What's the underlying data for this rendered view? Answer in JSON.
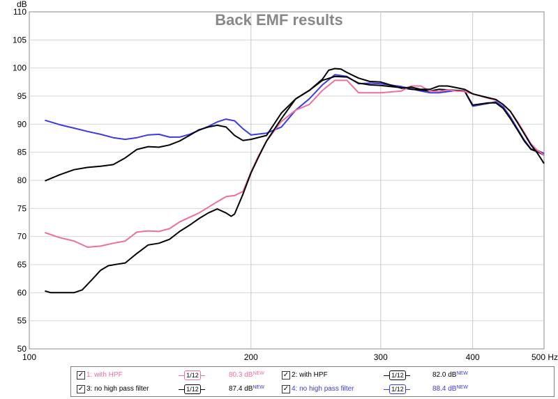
{
  "chart_data": {
    "type": "line",
    "title": "Back EMF results",
    "ylabel": "dB",
    "xscale": "log",
    "xlim": [
      100,
      500
    ],
    "ylim": [
      50,
      110
    ],
    "x_ticks": [
      100,
      200,
      300,
      400,
      500
    ],
    "x_tick_labels": [
      "100",
      "200",
      "300",
      "400",
      "500 Hz"
    ],
    "y_ticks": [
      50,
      55,
      60,
      65,
      70,
      75,
      80,
      85,
      90,
      95,
      100,
      105,
      110
    ],
    "grid": true,
    "series": [
      {
        "name": "1: with HPF",
        "color": "#f06da0",
        "value": "80.3 dB",
        "checked": true,
        "points": [
          [
            105,
            70.7
          ],
          [
            110,
            69.8
          ],
          [
            115,
            69.2
          ],
          [
            120,
            68.1
          ],
          [
            125,
            68.3
          ],
          [
            130,
            68.8
          ],
          [
            135,
            69.2
          ],
          [
            140,
            70.8
          ],
          [
            145,
            71.0
          ],
          [
            150,
            70.9
          ],
          [
            155,
            71.4
          ],
          [
            160,
            72.6
          ],
          [
            170,
            74.2
          ],
          [
            180,
            76.2
          ],
          [
            185,
            77.1
          ],
          [
            190,
            77.3
          ],
          [
            195,
            78.0
          ],
          [
            200,
            81.5
          ],
          [
            205,
            84.5
          ],
          [
            210,
            87.0
          ],
          [
            220,
            90.5
          ],
          [
            230,
            92.5
          ],
          [
            240,
            93.5
          ],
          [
            250,
            96.0
          ],
          [
            260,
            97.8
          ],
          [
            270,
            97.8
          ],
          [
            280,
            95.6
          ],
          [
            290,
            95.6
          ],
          [
            300,
            95.6
          ],
          [
            320,
            95.9
          ],
          [
            330,
            96.8
          ],
          [
            340,
            96.8
          ],
          [
            350,
            95.9
          ],
          [
            360,
            95.8
          ],
          [
            370,
            96.1
          ],
          [
            380,
            95.9
          ],
          [
            390,
            95.8
          ],
          [
            400,
            95.4
          ],
          [
            420,
            94.6
          ],
          [
            430,
            94.3
          ],
          [
            440,
            93.5
          ],
          [
            450,
            92.3
          ],
          [
            460,
            90.5
          ],
          [
            470,
            88.5
          ],
          [
            480,
            86.5
          ],
          [
            490,
            85.3
          ],
          [
            500,
            84.5
          ]
        ]
      },
      {
        "name": "2: with HPF",
        "color": "#000000",
        "value": "82.0 dB",
        "checked": true,
        "points": [
          [
            105,
            60.3
          ],
          [
            107,
            60.0
          ],
          [
            110,
            60.0
          ],
          [
            113,
            60.0
          ],
          [
            115,
            60.0
          ],
          [
            118,
            60.5
          ],
          [
            120,
            61.5
          ],
          [
            122,
            62.5
          ],
          [
            125,
            64.0
          ],
          [
            128,
            64.8
          ],
          [
            132,
            65.1
          ],
          [
            135,
            65.3
          ],
          [
            140,
            67.0
          ],
          [
            145,
            68.5
          ],
          [
            150,
            68.8
          ],
          [
            155,
            69.5
          ],
          [
            160,
            70.9
          ],
          [
            165,
            72.0
          ],
          [
            170,
            73.2
          ],
          [
            175,
            74.2
          ],
          [
            180,
            74.9
          ],
          [
            185,
            74.2
          ],
          [
            188,
            73.6
          ],
          [
            190,
            74.0
          ],
          [
            195,
            77.5
          ],
          [
            200,
            81.3
          ],
          [
            205,
            84.3
          ],
          [
            210,
            87.0
          ],
          [
            220,
            91.0
          ],
          [
            230,
            94.5
          ],
          [
            240,
            96.0
          ],
          [
            250,
            98.0
          ],
          [
            255,
            99.6
          ],
          [
            260,
            99.9
          ],
          [
            265,
            99.8
          ],
          [
            270,
            99.2
          ],
          [
            280,
            98.2
          ],
          [
            290,
            97.6
          ],
          [
            300,
            97.5
          ],
          [
            320,
            96.4
          ],
          [
            330,
            96.6
          ],
          [
            340,
            96.2
          ],
          [
            350,
            96.2
          ],
          [
            360,
            96.8
          ],
          [
            370,
            96.8
          ],
          [
            380,
            96.5
          ],
          [
            390,
            96.2
          ],
          [
            400,
            95.4
          ],
          [
            420,
            94.7
          ],
          [
            430,
            94.4
          ],
          [
            440,
            93.5
          ],
          [
            450,
            92.3
          ],
          [
            460,
            90.3
          ],
          [
            470,
            88.3
          ],
          [
            480,
            86.3
          ],
          [
            490,
            84.8
          ],
          [
            500,
            83.0
          ]
        ]
      },
      {
        "name": "3: no high pass filter",
        "color": "#000000",
        "value": "87.4 dB",
        "checked": true,
        "points": [
          [
            105,
            79.9
          ],
          [
            110,
            81.0
          ],
          [
            115,
            81.9
          ],
          [
            120,
            82.3
          ],
          [
            125,
            82.5
          ],
          [
            130,
            82.8
          ],
          [
            135,
            84.0
          ],
          [
            140,
            85.5
          ],
          [
            145,
            86.0
          ],
          [
            150,
            85.9
          ],
          [
            155,
            86.3
          ],
          [
            160,
            87.0
          ],
          [
            165,
            88.0
          ],
          [
            170,
            89.0
          ],
          [
            175,
            89.5
          ],
          [
            180,
            89.8
          ],
          [
            185,
            89.5
          ],
          [
            190,
            88.0
          ],
          [
            195,
            87.1
          ],
          [
            200,
            87.3
          ],
          [
            210,
            88.0
          ],
          [
            220,
            92.0
          ],
          [
            230,
            94.5
          ],
          [
            240,
            96.0
          ],
          [
            250,
            97.8
          ],
          [
            260,
            98.5
          ],
          [
            270,
            98.4
          ],
          [
            280,
            97.3
          ],
          [
            290,
            97.0
          ],
          [
            300,
            96.9
          ],
          [
            320,
            96.5
          ],
          [
            330,
            96.2
          ],
          [
            340,
            96.1
          ],
          [
            350,
            95.9
          ],
          [
            360,
            96.2
          ],
          [
            370,
            96.1
          ],
          [
            380,
            96.0
          ],
          [
            390,
            95.9
          ],
          [
            400,
            93.4
          ],
          [
            420,
            93.8
          ],
          [
            430,
            93.8
          ],
          [
            440,
            92.8
          ],
          [
            450,
            91.0
          ],
          [
            460,
            89.0
          ],
          [
            470,
            87.0
          ],
          [
            480,
            85.5
          ],
          [
            490,
            85.1
          ],
          [
            500,
            84.5
          ]
        ]
      },
      {
        "name": "4: no high pass filter",
        "color": "#3b3be0",
        "value": "88.4 dB",
        "checked": true,
        "points": [
          [
            105,
            90.7
          ],
          [
            110,
            89.9
          ],
          [
            115,
            89.3
          ],
          [
            120,
            88.7
          ],
          [
            125,
            88.2
          ],
          [
            130,
            87.6
          ],
          [
            135,
            87.3
          ],
          [
            140,
            87.6
          ],
          [
            145,
            88.1
          ],
          [
            150,
            88.2
          ],
          [
            155,
            87.7
          ],
          [
            160,
            87.7
          ],
          [
            165,
            88.2
          ],
          [
            170,
            88.9
          ],
          [
            175,
            89.6
          ],
          [
            180,
            90.4
          ],
          [
            185,
            90.9
          ],
          [
            190,
            90.6
          ],
          [
            195,
            89.2
          ],
          [
            200,
            88.1
          ],
          [
            210,
            88.4
          ],
          [
            220,
            89.5
          ],
          [
            230,
            92.5
          ],
          [
            240,
            94.5
          ],
          [
            250,
            97.0
          ],
          [
            260,
            98.8
          ],
          [
            270,
            98.5
          ],
          [
            280,
            97.2
          ],
          [
            290,
            97.3
          ],
          [
            300,
            97.2
          ],
          [
            320,
            96.7
          ],
          [
            330,
            96.3
          ],
          [
            340,
            95.9
          ],
          [
            350,
            95.6
          ],
          [
            360,
            95.6
          ],
          [
            370,
            95.8
          ],
          [
            380,
            96.0
          ],
          [
            390,
            95.9
          ],
          [
            400,
            93.2
          ],
          [
            420,
            93.7
          ],
          [
            430,
            94.0
          ],
          [
            440,
            93.1
          ],
          [
            450,
            91.3
          ],
          [
            460,
            89.2
          ],
          [
            470,
            87.2
          ],
          [
            480,
            85.6
          ],
          [
            490,
            85.3
          ],
          [
            500,
            84.8
          ]
        ]
      }
    ]
  },
  "legend": {
    "checkmark": "✓",
    "smooth_label": "1/12",
    "new_label": "NEW"
  }
}
